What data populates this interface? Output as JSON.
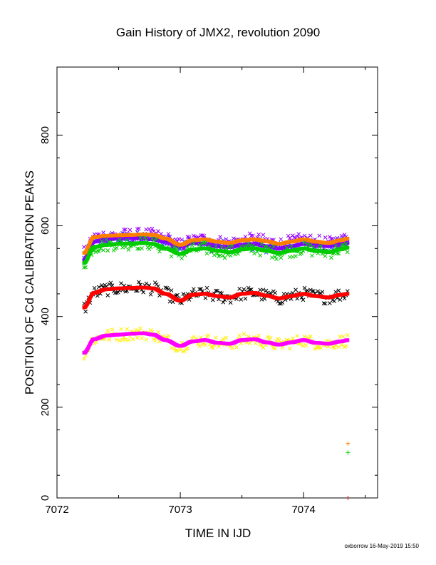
{
  "chart_data": {
    "type": "scatter",
    "title": "Gain History of JMX2, revolution 2090",
    "xlabel": "TIME IN IJD",
    "ylabel": "POSITION OF Cd CALIBRATION PEAKS",
    "xlim": [
      7072.0,
      7074.6
    ],
    "ylim": [
      0,
      950
    ],
    "xticks": [
      "7072",
      "7073",
      "7074"
    ],
    "yticks": [
      "0",
      "200",
      "400",
      "600",
      "800"
    ],
    "grid": false,
    "footer": "oxborrow 16-May-2019 15:50",
    "legend_markers": [
      {
        "color": "#ff7f00",
        "x": 7074.36,
        "y": 120
      },
      {
        "color": "#00cc00",
        "x": 7074.36,
        "y": 100
      }
    ],
    "series": [
      {
        "color": "#7f00ff",
        "scatter_color": "#3333ff",
        "x": [
          7072.22,
          7072.3,
          7072.4,
          7072.5,
          7072.6,
          7072.7,
          7072.78,
          7072.88,
          7073.0,
          7073.1,
          7073.2,
          7073.3,
          7073.4,
          7073.5,
          7073.6,
          7073.7,
          7073.8,
          7073.9,
          7074.0,
          7074.1,
          7074.2,
          7074.3,
          7074.36
        ],
        "values": [
          525,
          565,
          570,
          572,
          573,
          572,
          570,
          565,
          555,
          562,
          560,
          555,
          553,
          558,
          560,
          555,
          550,
          555,
          560,
          557,
          555,
          560,
          562
        ]
      },
      {
        "color": "#ff7f00",
        "scatter_color": "#9900ff",
        "x": [
          7072.22,
          7072.3,
          7072.4,
          7072.5,
          7072.6,
          7072.7,
          7072.78,
          7072.88,
          7073.0,
          7073.1,
          7073.2,
          7073.3,
          7073.4,
          7073.5,
          7073.6,
          7073.7,
          7073.8,
          7073.9,
          7074.0,
          7074.1,
          7074.2,
          7074.3,
          7074.36
        ],
        "values": [
          540,
          575,
          578,
          579,
          580,
          581,
          580,
          572,
          558,
          568,
          570,
          565,
          562,
          568,
          570,
          566,
          560,
          565,
          570,
          565,
          562,
          568,
          572
        ]
      },
      {
        "color": "#00cc00",
        "scatter_color": "#00cc00",
        "x": [
          7072.22,
          7072.3,
          7072.4,
          7072.5,
          7072.6,
          7072.7,
          7072.78,
          7072.88,
          7073.0,
          7073.1,
          7073.2,
          7073.3,
          7073.4,
          7073.5,
          7073.6,
          7073.7,
          7073.8,
          7073.9,
          7074.0,
          7074.1,
          7074.2,
          7074.3,
          7074.36
        ],
        "values": [
          518,
          553,
          558,
          560,
          561,
          562,
          560,
          550,
          538,
          548,
          550,
          545,
          542,
          548,
          550,
          545,
          540,
          545,
          550,
          545,
          542,
          548,
          552
        ]
      },
      {
        "color": "#ff0000",
        "scatter_color": "#000000",
        "x": [
          7072.22,
          7072.3,
          7072.4,
          7072.5,
          7072.6,
          7072.7,
          7072.78,
          7072.88,
          7073.0,
          7073.1,
          7073.2,
          7073.3,
          7073.4,
          7073.5,
          7073.6,
          7073.7,
          7073.8,
          7073.9,
          7074.0,
          7074.1,
          7074.2,
          7074.3,
          7074.36
        ],
        "values": [
          420,
          452,
          460,
          462,
          463,
          464,
          462,
          450,
          435,
          448,
          450,
          445,
          442,
          450,
          452,
          446,
          440,
          445,
          450,
          445,
          442,
          448,
          450
        ]
      },
      {
        "color": "#ff00ff",
        "scatter_color": "#ffee00",
        "x": [
          7072.22,
          7072.3,
          7072.4,
          7072.5,
          7072.6,
          7072.7,
          7072.78,
          7072.88,
          7073.0,
          7073.1,
          7073.2,
          7073.3,
          7073.4,
          7073.5,
          7073.6,
          7073.7,
          7073.8,
          7073.9,
          7074.0,
          7074.1,
          7074.2,
          7074.3,
          7074.36
        ],
        "values": [
          320,
          350,
          358,
          360,
          362,
          363,
          360,
          348,
          335,
          345,
          348,
          342,
          340,
          348,
          350,
          343,
          338,
          343,
          348,
          342,
          340,
          345,
          348
        ]
      }
    ]
  }
}
